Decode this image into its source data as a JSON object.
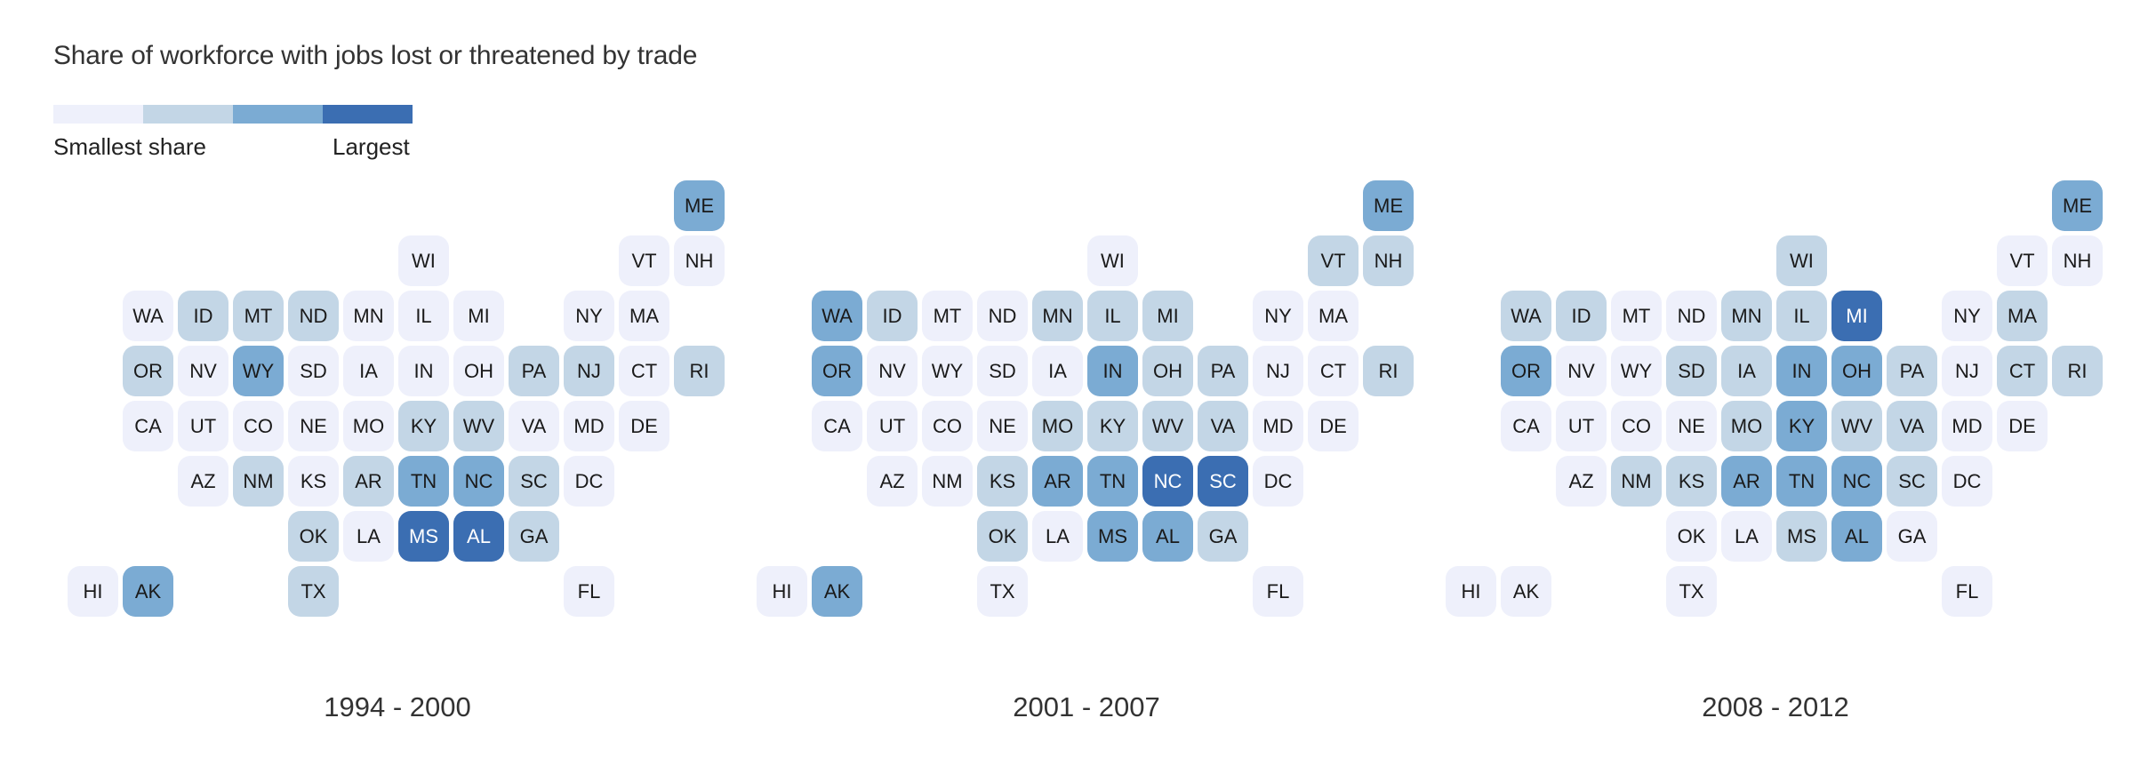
{
  "title": "Share of workforce with jobs lost or threatened by trade",
  "legend": {
    "small_label": "Smallest share",
    "large_label": "Largest",
    "colors": [
      "#eef0fb",
      "#c3d6e6",
      "#7babd3",
      "#3b6eb2"
    ]
  },
  "chart_data": {
    "type": "heatmap",
    "description_scale": "level 1 = smallest share, level 4 = largest share",
    "grid": [
      {
        "state": "ME",
        "col": 11,
        "row": 0
      },
      {
        "state": "WI",
        "col": 6,
        "row": 1
      },
      {
        "state": "VT",
        "col": 10,
        "row": 1
      },
      {
        "state": "NH",
        "col": 11,
        "row": 1
      },
      {
        "state": "WA",
        "col": 1,
        "row": 2
      },
      {
        "state": "ID",
        "col": 2,
        "row": 2
      },
      {
        "state": "MT",
        "col": 3,
        "row": 2
      },
      {
        "state": "ND",
        "col": 4,
        "row": 2
      },
      {
        "state": "MN",
        "col": 5,
        "row": 2
      },
      {
        "state": "IL",
        "col": 6,
        "row": 2
      },
      {
        "state": "MI",
        "col": 7,
        "row": 2
      },
      {
        "state": "NY",
        "col": 9,
        "row": 2
      },
      {
        "state": "MA",
        "col": 10,
        "row": 2
      },
      {
        "state": "OR",
        "col": 1,
        "row": 3
      },
      {
        "state": "NV",
        "col": 2,
        "row": 3
      },
      {
        "state": "WY",
        "col": 3,
        "row": 3
      },
      {
        "state": "SD",
        "col": 4,
        "row": 3
      },
      {
        "state": "IA",
        "col": 5,
        "row": 3
      },
      {
        "state": "IN",
        "col": 6,
        "row": 3
      },
      {
        "state": "OH",
        "col": 7,
        "row": 3
      },
      {
        "state": "PA",
        "col": 8,
        "row": 3
      },
      {
        "state": "NJ",
        "col": 9,
        "row": 3
      },
      {
        "state": "CT",
        "col": 10,
        "row": 3
      },
      {
        "state": "RI",
        "col": 11,
        "row": 3
      },
      {
        "state": "CA",
        "col": 1,
        "row": 4
      },
      {
        "state": "UT",
        "col": 2,
        "row": 4
      },
      {
        "state": "CO",
        "col": 3,
        "row": 4
      },
      {
        "state": "NE",
        "col": 4,
        "row": 4
      },
      {
        "state": "MO",
        "col": 5,
        "row": 4
      },
      {
        "state": "KY",
        "col": 6,
        "row": 4
      },
      {
        "state": "WV",
        "col": 7,
        "row": 4
      },
      {
        "state": "VA",
        "col": 8,
        "row": 4
      },
      {
        "state": "MD",
        "col": 9,
        "row": 4
      },
      {
        "state": "DE",
        "col": 10,
        "row": 4
      },
      {
        "state": "AZ",
        "col": 2,
        "row": 5
      },
      {
        "state": "NM",
        "col": 3,
        "row": 5
      },
      {
        "state": "KS",
        "col": 4,
        "row": 5
      },
      {
        "state": "AR",
        "col": 5,
        "row": 5
      },
      {
        "state": "TN",
        "col": 6,
        "row": 5
      },
      {
        "state": "NC",
        "col": 7,
        "row": 5
      },
      {
        "state": "SC",
        "col": 8,
        "row": 5
      },
      {
        "state": "DC",
        "col": 9,
        "row": 5
      },
      {
        "state": "OK",
        "col": 4,
        "row": 6
      },
      {
        "state": "LA",
        "col": 5,
        "row": 6
      },
      {
        "state": "MS",
        "col": 6,
        "row": 6
      },
      {
        "state": "AL",
        "col": 7,
        "row": 6
      },
      {
        "state": "GA",
        "col": 8,
        "row": 6
      },
      {
        "state": "HI",
        "col": 0,
        "row": 7
      },
      {
        "state": "AK",
        "col": 1,
        "row": 7
      },
      {
        "state": "TX",
        "col": 4,
        "row": 7
      },
      {
        "state": "FL",
        "col": 9,
        "row": 7
      }
    ],
    "periods": [
      {
        "label": "1994 - 2000",
        "levels": {
          "ME": 3,
          "WI": 1,
          "VT": 1,
          "NH": 1,
          "WA": 1,
          "ID": 2,
          "MT": 2,
          "ND": 2,
          "MN": 1,
          "IL": 1,
          "MI": 1,
          "NY": 1,
          "MA": 1,
          "OR": 2,
          "NV": 1,
          "WY": 3,
          "SD": 1,
          "IA": 1,
          "IN": 1,
          "OH": 1,
          "PA": 2,
          "NJ": 2,
          "CT": 1,
          "RI": 2,
          "CA": 1,
          "UT": 1,
          "CO": 1,
          "NE": 1,
          "MO": 1,
          "KY": 2,
          "WV": 2,
          "VA": 1,
          "MD": 1,
          "DE": 1,
          "AZ": 1,
          "NM": 2,
          "KS": 1,
          "AR": 2,
          "TN": 3,
          "NC": 3,
          "SC": 2,
          "DC": 1,
          "OK": 2,
          "LA": 1,
          "MS": 4,
          "AL": 4,
          "GA": 2,
          "HI": 1,
          "AK": 3,
          "TX": 2,
          "FL": 1
        }
      },
      {
        "label": "2001 - 2007",
        "levels": {
          "ME": 3,
          "WI": 1,
          "VT": 2,
          "NH": 2,
          "WA": 3,
          "ID": 2,
          "MT": 1,
          "ND": 1,
          "MN": 2,
          "IL": 2,
          "MI": 2,
          "NY": 1,
          "MA": 1,
          "OR": 3,
          "NV": 1,
          "WY": 1,
          "SD": 1,
          "IA": 1,
          "IN": 3,
          "OH": 2,
          "PA": 2,
          "NJ": 1,
          "CT": 1,
          "RI": 2,
          "CA": 1,
          "UT": 1,
          "CO": 1,
          "NE": 1,
          "MO": 2,
          "KY": 2,
          "WV": 2,
          "VA": 2,
          "MD": 1,
          "DE": 1,
          "AZ": 1,
          "NM": 1,
          "KS": 2,
          "AR": 3,
          "TN": 3,
          "NC": 4,
          "SC": 4,
          "DC": 1,
          "OK": 2,
          "LA": 1,
          "MS": 3,
          "AL": 3,
          "GA": 2,
          "HI": 1,
          "AK": 3,
          "TX": 1,
          "FL": 1
        }
      },
      {
        "label": "2008 - 2012",
        "levels": {
          "ME": 3,
          "WI": 2,
          "VT": 1,
          "NH": 1,
          "WA": 2,
          "ID": 2,
          "MT": 1,
          "ND": 1,
          "MN": 2,
          "IL": 2,
          "MI": 4,
          "NY": 1,
          "MA": 2,
          "OR": 3,
          "NV": 1,
          "WY": 1,
          "SD": 2,
          "IA": 2,
          "IN": 3,
          "OH": 3,
          "PA": 2,
          "NJ": 1,
          "CT": 2,
          "RI": 2,
          "CA": 1,
          "UT": 1,
          "CO": 1,
          "NE": 1,
          "MO": 2,
          "KY": 3,
          "WV": 2,
          "VA": 2,
          "MD": 1,
          "DE": 1,
          "AZ": 1,
          "NM": 2,
          "KS": 2,
          "AR": 3,
          "TN": 3,
          "NC": 3,
          "SC": 2,
          "DC": 1,
          "OK": 1,
          "LA": 1,
          "MS": 2,
          "AL": 3,
          "GA": 1,
          "HI": 1,
          "AK": 1,
          "TX": 1,
          "FL": 1
        }
      }
    ]
  }
}
